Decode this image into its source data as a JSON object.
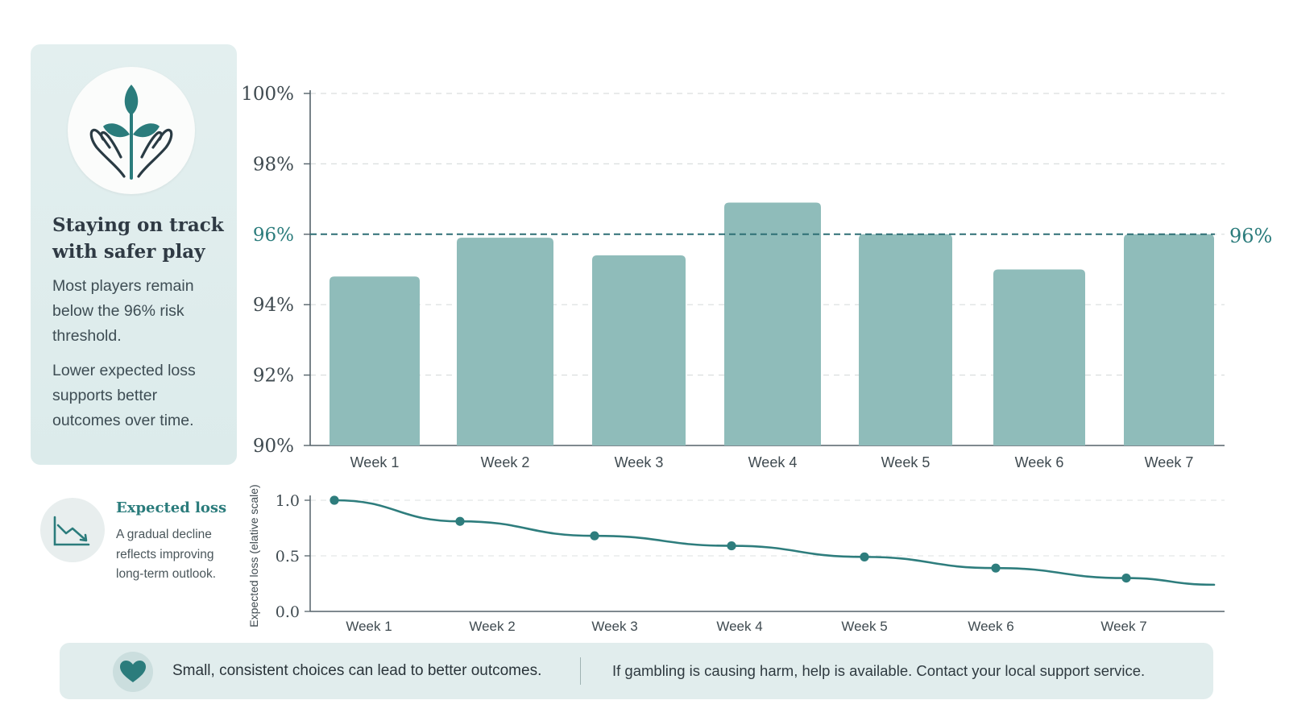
{
  "sidebar": {
    "title": "Staying on track with safer play",
    "paragraph1": "Most players remain below the 96% risk threshold.",
    "paragraph2": "Lower expected loss supports better outcomes over time.",
    "icon": "hands-sprout-icon"
  },
  "legend": {
    "title": "Expected loss",
    "text": "A gradual decline reflects improving long-term outlook.",
    "icon": "trend-down-icon"
  },
  "footer": {
    "message": "Small, consistent choices can lead to better outcomes.",
    "help": "If gambling is causing harm, help is available. Contact your local support service.",
    "icon": "heart-icon"
  },
  "colors": {
    "accent": "#2b7c7c",
    "bar": "#8fbcba",
    "line": "#2e7d7d"
  },
  "chart_data": [
    {
      "type": "bar",
      "categories": [
        "Week 1",
        "Week 2",
        "Week 3",
        "Week 4",
        "Week 5",
        "Week 6",
        "Week 7"
      ],
      "values": [
        94.8,
        95.9,
        95.4,
        96.9,
        96.0,
        95.0,
        96.0
      ],
      "ylim": [
        90,
        100
      ],
      "yticks": [
        "90%",
        "92%",
        "94%",
        "96%",
        "98%",
        "100%"
      ],
      "ytick_values": [
        90,
        92,
        94,
        96,
        98,
        100
      ],
      "threshold": {
        "value": 96,
        "label": "96%"
      },
      "grid": true
    },
    {
      "type": "line",
      "x": [
        "Week 1",
        "Week 2",
        "Week 3",
        "Week 4",
        "Week 5",
        "Week 6",
        "Week 7"
      ],
      "values": [
        1.0,
        0.81,
        0.68,
        0.59,
        0.49,
        0.39,
        0.3
      ],
      "end_value": 0.24,
      "ylabel": "Expected loss (elative scale)",
      "ylim": [
        0,
        1
      ],
      "yticks": [
        "0.0",
        "0.5",
        "1.0"
      ],
      "ytick_values": [
        0,
        0.5,
        1
      ],
      "grid": true
    }
  ]
}
